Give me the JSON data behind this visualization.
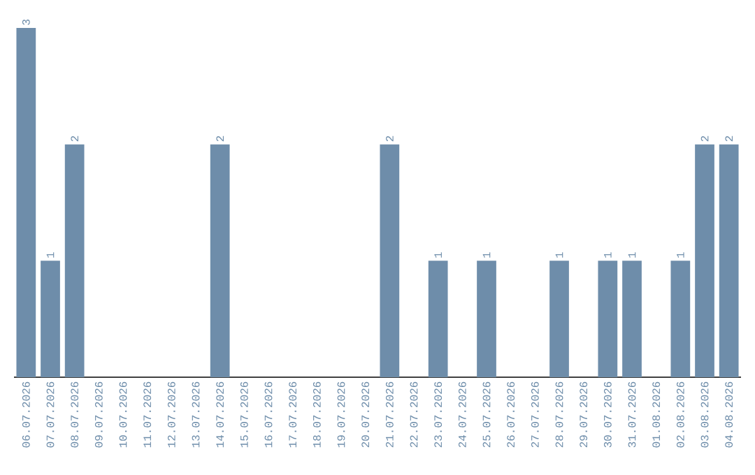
{
  "chart_data": {
    "type": "bar",
    "color": "#6e8daa",
    "categories": [
      "06.07.2026",
      "07.07.2026",
      "08.07.2026",
      "09.07.2026",
      "10.07.2026",
      "11.07.2026",
      "12.07.2026",
      "13.07.2026",
      "14.07.2026",
      "15.07.2026",
      "16.07.2026",
      "17.07.2026",
      "18.07.2026",
      "19.07.2026",
      "20.07.2026",
      "21.07.2026",
      "22.07.2026",
      "23.07.2026",
      "24.07.2026",
      "25.07.2026",
      "26.07.2026",
      "27.07.2026",
      "28.07.2026",
      "29.07.2026",
      "30.07.2026",
      "31.07.2026",
      "01.08.2026",
      "02.08.2026",
      "03.08.2026",
      "04.08.2026"
    ],
    "values": [
      3,
      1,
      2,
      0,
      0,
      0,
      0,
      0,
      2,
      0,
      0,
      0,
      0,
      0,
      0,
      2,
      0,
      1,
      0,
      1,
      0,
      0,
      1,
      0,
      1,
      1,
      0,
      1,
      2,
      2
    ],
    "value_labels": [
      "3",
      "1",
      "2",
      null,
      null,
      null,
      null,
      null,
      "2",
      null,
      null,
      null,
      null,
      null,
      null,
      "2",
      null,
      "1",
      null,
      "1",
      null,
      null,
      "1",
      null,
      "1",
      "1",
      null,
      "1",
      "2",
      "2"
    ],
    "data_labels": false
  }
}
